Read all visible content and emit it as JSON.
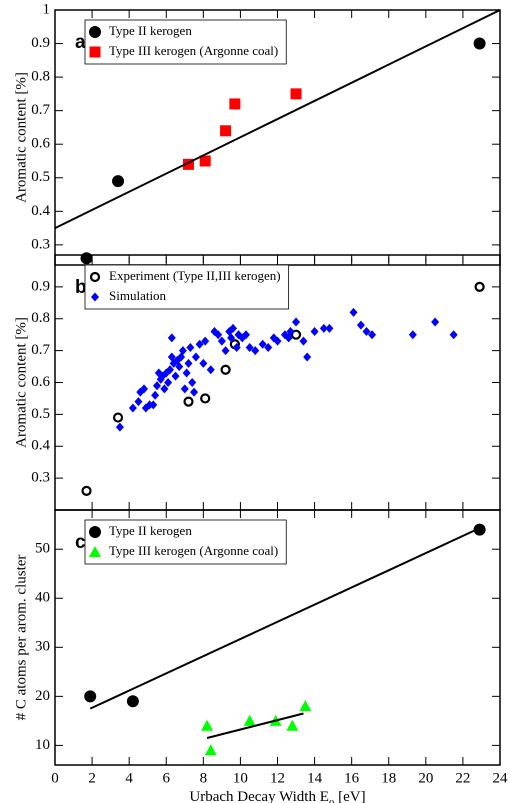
{
  "chart_data": [
    {
      "type": "scatter",
      "ylabel": "Aromatic content [%]",
      "annotation": "a",
      "legend": "upper left",
      "xlim": [
        0,
        24
      ],
      "xticks": [
        0,
        2,
        4,
        6,
        8,
        10,
        12,
        14,
        16,
        18,
        20,
        22,
        24
      ],
      "ylim": [
        0.24,
        1.0
      ],
      "yticks": [
        0.3,
        0.4,
        0.5,
        0.6,
        0.7,
        0.8,
        0.9,
        1
      ],
      "series": [
        {
          "name": "Type II kerogen",
          "marker": "circle",
          "filled": true,
          "color": "#000000",
          "x": [
            1.7,
            3.4,
            22.9
          ],
          "values": [
            0.26,
            0.49,
            0.9
          ]
        },
        {
          "name": "Type III kerogen (Argonne coal)",
          "marker": "square",
          "filled": true,
          "color": "#ff0000",
          "x": [
            7.2,
            8.1,
            9.2,
            9.7,
            13.0
          ],
          "values": [
            0.54,
            0.55,
            0.64,
            0.72,
            0.75
          ]
        },
        {
          "marker": "line",
          "color": "#000000",
          "x": [
            0,
            24
          ],
          "values": [
            0.35,
            1.0
          ]
        }
      ]
    },
    {
      "type": "scatter",
      "ylabel": "Aromatic content [%]",
      "annotation": "b",
      "legend": "upper left",
      "xlim": [
        0,
        24
      ],
      "xticks": [
        0,
        2,
        4,
        6,
        8,
        10,
        12,
        14,
        16,
        18,
        20,
        22,
        24
      ],
      "ylim": [
        0.2,
        1.0
      ],
      "yticks": [
        0.3,
        0.4,
        0.5,
        0.6,
        0.7,
        0.8,
        0.9
      ],
      "series": [
        {
          "name": "Experiment (Type II,III kerogen)",
          "marker": "circle",
          "filled": false,
          "color": "#000000",
          "x": [
            1.7,
            3.4,
            7.2,
            8.1,
            9.2,
            9.7,
            13.0,
            22.9
          ],
          "values": [
            0.26,
            0.49,
            0.54,
            0.55,
            0.64,
            0.72,
            0.75,
            0.9
          ]
        },
        {
          "name": "Simulation",
          "marker": "diamond",
          "filled": true,
          "color": "#0000ff",
          "x": [
            3.5,
            4.2,
            4.5,
            4.6,
            4.8,
            4.9,
            5.1,
            5.3,
            5.4,
            5.5,
            5.6,
            5.7,
            5.8,
            5.9,
            6.0,
            6.1,
            6.2,
            6.3,
            6.3,
            6.4,
            6.5,
            6.6,
            6.7,
            6.8,
            6.9,
            7.0,
            7.1,
            7.2,
            7.3,
            7.4,
            7.5,
            7.6,
            7.8,
            8.0,
            8.1,
            8.4,
            8.6,
            8.8,
            9.0,
            9.2,
            9.4,
            9.5,
            9.6,
            9.8,
            9.9,
            10.1,
            10.3,
            10.5,
            10.8,
            11.2,
            11.5,
            11.8,
            12.0,
            12.4,
            12.6,
            12.7,
            13.0,
            13.4,
            13.6,
            14.0,
            14.5,
            14.8,
            16.1,
            16.5,
            16.8,
            17.1,
            19.3,
            20.5,
            21.5
          ],
          "values": [
            0.46,
            0.52,
            0.54,
            0.57,
            0.58,
            0.52,
            0.53,
            0.53,
            0.56,
            0.59,
            0.63,
            0.61,
            0.62,
            0.58,
            0.63,
            0.6,
            0.64,
            0.68,
            0.74,
            0.66,
            0.62,
            0.67,
            0.65,
            0.68,
            0.7,
            0.58,
            0.63,
            0.66,
            0.71,
            0.6,
            0.57,
            0.68,
            0.72,
            0.66,
            0.73,
            0.64,
            0.76,
            0.75,
            0.73,
            0.7,
            0.76,
            0.74,
            0.77,
            0.71,
            0.75,
            0.74,
            0.75,
            0.71,
            0.7,
            0.72,
            0.71,
            0.74,
            0.73,
            0.75,
            0.74,
            0.76,
            0.79,
            0.73,
            0.68,
            0.76,
            0.77,
            0.77,
            0.82,
            0.78,
            0.76,
            0.75,
            0.75,
            0.79,
            0.75
          ]
        }
      ]
    },
    {
      "type": "scatter",
      "ylabel": "# C atoms per arom. cluster",
      "annotation": "c",
      "legend": "upper left",
      "xlabel": [
        "Urbach Decay Width E",
        "0",
        " [eV]"
      ],
      "xlim": [
        0,
        24
      ],
      "xticks": [
        0,
        2,
        4,
        6,
        8,
        10,
        12,
        14,
        16,
        18,
        20,
        22,
        24
      ],
      "ylim": [
        6,
        58
      ],
      "yticks": [
        10,
        20,
        30,
        40,
        50
      ],
      "series": [
        {
          "name": "Type II kerogen",
          "marker": "circle",
          "filled": true,
          "color": "#000000",
          "x": [
            1.9,
            4.2,
            22.9
          ],
          "values": [
            20,
            19,
            54
          ]
        },
        {
          "name": "Type III kerogen (Argonne coal)",
          "marker": "triangle",
          "filled": true,
          "color": "#00ff00",
          "x": [
            8.2,
            8.4,
            10.5,
            11.9,
            12.8,
            13.5
          ],
          "values": [
            14,
            9,
            15,
            15,
            14,
            18
          ]
        },
        {
          "marker": "line",
          "color": "#000000",
          "x": [
            1.9,
            22.9
          ],
          "values": [
            17.5,
            54.3
          ]
        },
        {
          "marker": "line",
          "color": "#000000",
          "x": [
            8.2,
            13.4
          ],
          "values": [
            11.5,
            16.5
          ]
        }
      ]
    }
  ]
}
